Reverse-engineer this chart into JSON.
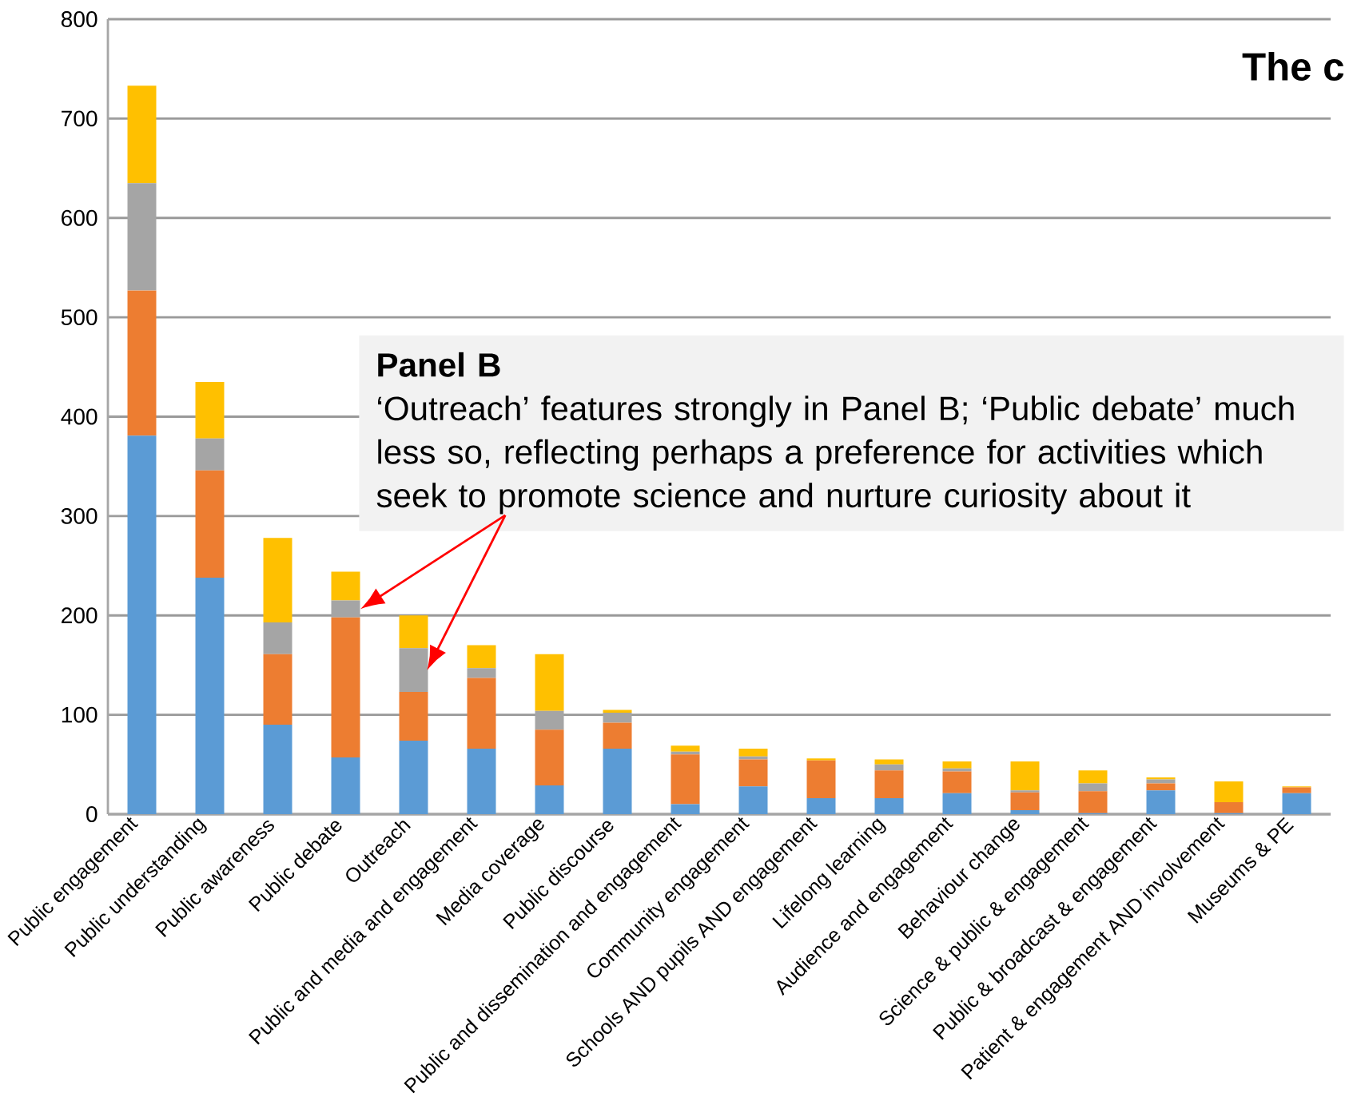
{
  "chart_data": {
    "type": "bar",
    "stacked": true,
    "title": "The c",
    "categories": [
      "Public engagement",
      "Public understanding",
      "Public awareness",
      "Public debate",
      "Outreach",
      "Public and media and engagement",
      "Media coverage",
      "Public discourse",
      "Public and dissemination and engagement",
      "Community engagement",
      "Schools AND pupils AND engagement",
      "Lifelong learning",
      "Audience and engagement",
      "Behaviour change",
      "Science & public & engagement",
      "Public & broadcast & engagement",
      "Patient & engagement AND involvement",
      "Museums & PE"
    ],
    "series": [
      {
        "color": "#5b9bd5",
        "values": [
          381,
          238,
          90,
          57,
          74,
          66,
          29,
          66,
          10,
          28,
          16,
          16,
          21,
          4,
          1,
          24,
          1,
          21
        ]
      },
      {
        "color": "#ed7d31",
        "values": [
          146,
          108,
          71,
          141,
          49,
          71,
          56,
          26,
          50,
          27,
          38,
          28,
          22,
          18,
          22,
          7,
          11,
          6
        ]
      },
      {
        "color": "#a5a5a5",
        "values": [
          108,
          32,
          32,
          17,
          44,
          10,
          19,
          10,
          3,
          3,
          null,
          6,
          3,
          2,
          8,
          4,
          null,
          null
        ]
      },
      {
        "color": "#ffc000",
        "values": [
          98,
          57,
          85,
          29,
          33,
          23,
          57,
          3,
          6,
          8,
          2,
          5,
          7,
          29,
          13,
          2,
          21,
          1
        ]
      }
    ],
    "ylim": [
      0,
      800
    ],
    "yticks": [
      0,
      100,
      200,
      300,
      400,
      500,
      600,
      700,
      800
    ],
    "grid": "y",
    "annotations": [
      "Panel B",
      "‘Outreach’ features strongly in Panel B; ‘Public debate’ much less so, reflecting perhaps a preference for activities which seek to promote science and nurture curiosity about it"
    ]
  }
}
